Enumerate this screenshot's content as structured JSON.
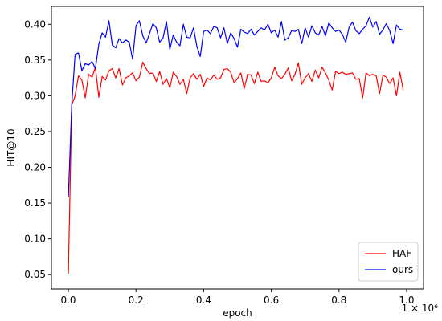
{
  "chart_data": {
    "type": "line",
    "title": "",
    "xlabel": "epoch",
    "ylabel": "HIT@10",
    "x_offset_text": "1 × 10⁶",
    "xlim": [
      -0.05,
      1.05
    ],
    "ylim": [
      0.03,
      0.425
    ],
    "x_ticks": [
      0.0,
      0.2,
      0.4,
      0.6,
      0.8,
      1.0
    ],
    "x_tick_labels": [
      "0.0",
      "0.2",
      "0.4",
      "0.6",
      "0.8",
      "1.0"
    ],
    "y_ticks": [
      0.05,
      0.1,
      0.15,
      0.2,
      0.25,
      0.3,
      0.35,
      0.4
    ],
    "y_tick_labels": [
      "0.05",
      "0.10",
      "0.15",
      "0.20",
      "0.25",
      "0.30",
      "0.35",
      "0.40"
    ],
    "grid": false,
    "legend_position": "lower-right",
    "x": [
      0.0,
      0.01,
      0.02,
      0.03,
      0.04,
      0.05,
      0.06,
      0.07,
      0.08,
      0.09,
      0.1,
      0.11,
      0.12,
      0.13,
      0.14,
      0.15,
      0.16,
      0.17,
      0.18,
      0.19,
      0.2,
      0.21,
      0.22,
      0.23,
      0.24,
      0.25,
      0.26,
      0.27,
      0.28,
      0.29,
      0.3,
      0.31,
      0.32,
      0.33,
      0.34,
      0.35,
      0.36,
      0.37,
      0.38,
      0.39,
      0.4,
      0.41,
      0.42,
      0.43,
      0.44,
      0.45,
      0.46,
      0.47,
      0.48,
      0.49,
      0.5,
      0.51,
      0.52,
      0.53,
      0.54,
      0.55,
      0.56,
      0.57,
      0.58,
      0.59,
      0.6,
      0.61,
      0.62,
      0.63,
      0.64,
      0.65,
      0.66,
      0.67,
      0.68,
      0.69,
      0.7,
      0.71,
      0.72,
      0.73,
      0.74,
      0.75,
      0.76,
      0.77,
      0.78,
      0.79,
      0.8,
      0.81,
      0.82,
      0.83,
      0.84,
      0.85,
      0.86,
      0.87,
      0.88,
      0.89,
      0.9,
      0.91,
      0.92,
      0.93,
      0.94,
      0.95,
      0.96,
      0.97,
      0.98,
      0.99
    ],
    "series": [
      {
        "name": "HAF",
        "color": "#ff0000",
        "values": [
          0.051,
          0.287,
          0.3,
          0.328,
          0.322,
          0.297,
          0.33,
          0.326,
          0.34,
          0.298,
          0.327,
          0.322,
          0.335,
          0.338,
          0.325,
          0.338,
          0.315,
          0.325,
          0.328,
          0.332,
          0.321,
          0.326,
          0.347,
          0.338,
          0.331,
          0.332,
          0.32,
          0.334,
          0.316,
          0.324,
          0.311,
          0.333,
          0.327,
          0.316,
          0.323,
          0.303,
          0.325,
          0.331,
          0.323,
          0.33,
          0.313,
          0.325,
          0.322,
          0.329,
          0.323,
          0.325,
          0.337,
          0.338,
          0.333,
          0.318,
          0.324,
          0.332,
          0.31,
          0.33,
          0.329,
          0.317,
          0.333,
          0.32,
          0.321,
          0.318,
          0.325,
          0.34,
          0.328,
          0.324,
          0.33,
          0.339,
          0.321,
          0.33,
          0.346,
          0.316,
          0.325,
          0.331,
          0.32,
          0.336,
          0.325,
          0.34,
          0.332,
          0.322,
          0.308,
          0.334,
          0.331,
          0.333,
          0.33,
          0.331,
          0.332,
          0.323,
          0.324,
          0.297,
          0.332,
          0.328,
          0.33,
          0.328,
          0.303,
          0.329,
          0.326,
          0.317,
          0.325,
          0.3,
          0.333,
          0.308
        ]
      },
      {
        "name": "ours",
        "color": "#0000ff",
        "values": [
          0.158,
          0.287,
          0.358,
          0.36,
          0.335,
          0.345,
          0.343,
          0.348,
          0.338,
          0.372,
          0.388,
          0.382,
          0.405,
          0.371,
          0.367,
          0.38,
          0.374,
          0.378,
          0.375,
          0.351,
          0.398,
          0.405,
          0.384,
          0.374,
          0.387,
          0.401,
          0.395,
          0.375,
          0.381,
          0.404,
          0.365,
          0.385,
          0.375,
          0.37,
          0.4,
          0.382,
          0.381,
          0.395,
          0.369,
          0.355,
          0.39,
          0.392,
          0.387,
          0.397,
          0.395,
          0.381,
          0.395,
          0.373,
          0.388,
          0.38,
          0.368,
          0.393,
          0.389,
          0.387,
          0.393,
          0.385,
          0.39,
          0.395,
          0.392,
          0.4,
          0.388,
          0.392,
          0.382,
          0.404,
          0.378,
          0.381,
          0.391,
          0.39,
          0.393,
          0.373,
          0.395,
          0.382,
          0.398,
          0.388,
          0.385,
          0.397,
          0.384,
          0.402,
          0.395,
          0.39,
          0.392,
          0.386,
          0.375,
          0.396,
          0.403,
          0.391,
          0.387,
          0.393,
          0.398,
          0.41,
          0.396,
          0.404,
          0.386,
          0.392,
          0.401,
          0.391,
          0.373,
          0.399,
          0.393,
          0.392
        ]
      }
    ]
  }
}
